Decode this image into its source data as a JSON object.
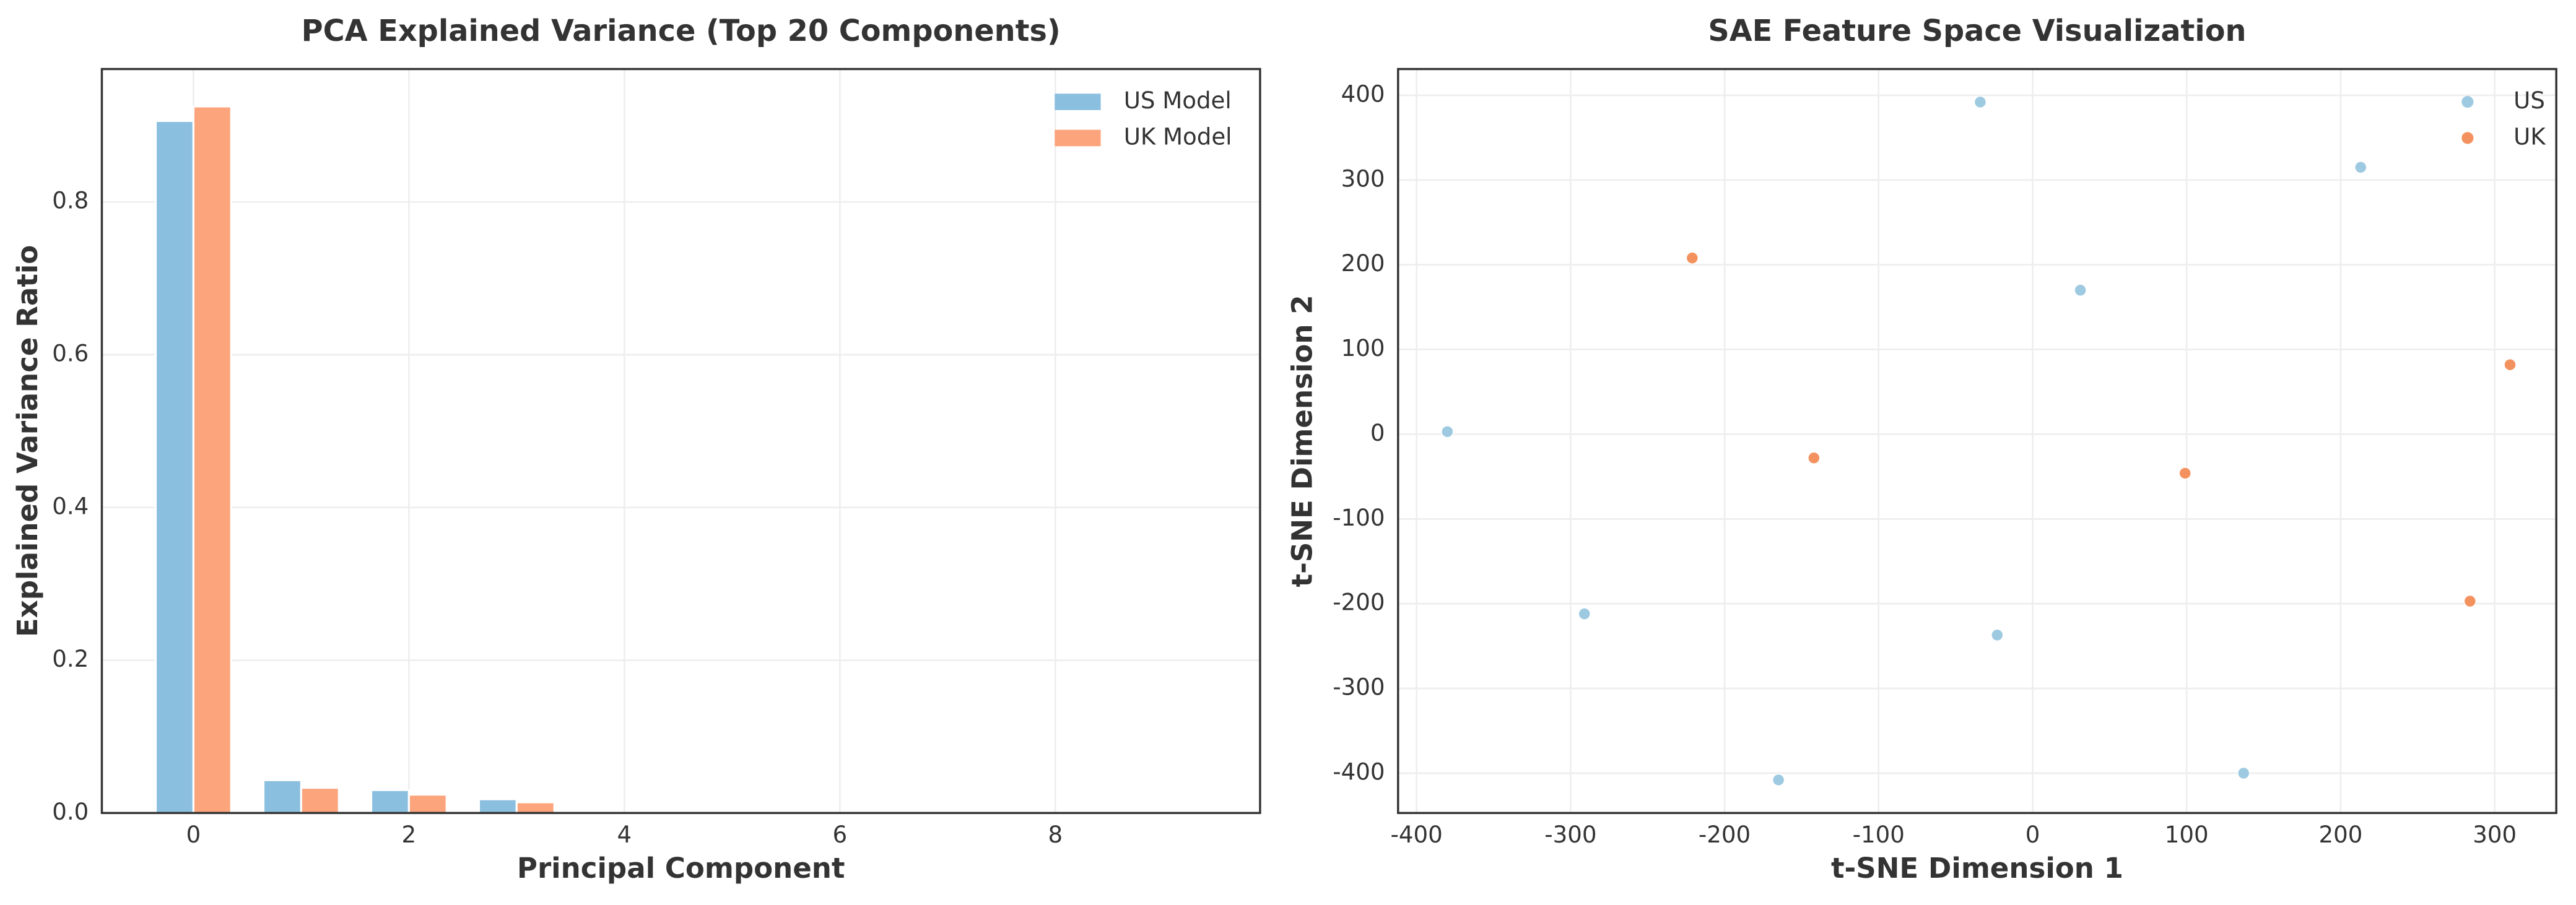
{
  "chart_data": [
    {
      "type": "bar",
      "title": "PCA Explained Variance (Top 20 Components)",
      "xlabel": "Principal Component",
      "ylabel": "Explained Variance Ratio",
      "x": [
        0,
        1,
        2,
        3
      ],
      "series": [
        {
          "name": "US Model",
          "color": "#8bbfdf",
          "values": [
            0.906,
            0.043,
            0.03,
            0.018
          ]
        },
        {
          "name": "UK Model",
          "color": "#fca47c",
          "values": [
            0.925,
            0.033,
            0.024,
            0.014
          ]
        }
      ],
      "xlim": [
        -0.85,
        9.9
      ],
      "xticks": [
        0,
        2,
        4,
        6,
        8
      ],
      "ylim": [
        0,
        0.974
      ],
      "yticks": [
        {
          "value": 0,
          "label": "0.0"
        },
        {
          "value": 0.2,
          "label": "0.2"
        },
        {
          "value": 0.4,
          "label": "0.4"
        },
        {
          "value": 0.6,
          "label": "0.6"
        },
        {
          "value": 0.8,
          "label": "0.8"
        }
      ],
      "grid": true,
      "legend": "upper right"
    },
    {
      "type": "scatter",
      "title": "SAE Feature Space Visualization",
      "xlabel": "t-SNE Dimension 1",
      "ylabel": "t-SNE Dimension 2",
      "series": [
        {
          "name": "US",
          "color": "#9ecae1",
          "x": [
            -380,
            -34,
            213,
            31,
            -291,
            -23,
            -165,
            137
          ],
          "values": [
            3,
            392,
            315,
            170,
            -212,
            -237,
            -408,
            -400
          ]
        },
        {
          "name": "UK",
          "color": "#f4925f",
          "x": [
            -221,
            -142,
            99,
            310,
            284
          ],
          "values": [
            208,
            -28,
            -46,
            82,
            -197
          ]
        }
      ],
      "xlim": [
        -412,
        340
      ],
      "xticks": [
        -400,
        -300,
        -200,
        -100,
        0,
        100,
        200,
        300
      ],
      "ylim": [
        -447,
        431
      ],
      "yticks": [
        -400,
        -300,
        -200,
        -100,
        0,
        100,
        200,
        300,
        400
      ],
      "grid": true,
      "legend": "upper right"
    }
  ]
}
